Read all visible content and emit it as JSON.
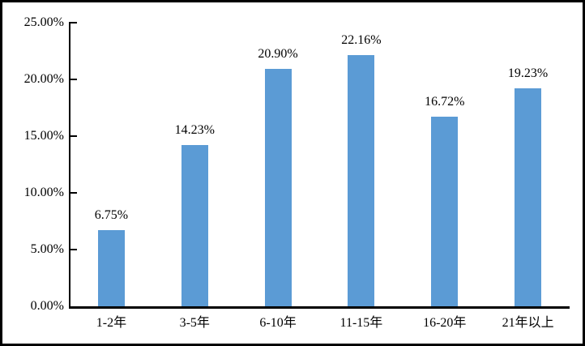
{
  "chart_data": {
    "type": "bar",
    "categories": [
      "1-2年",
      "3-5年",
      "6-10年",
      "11-15年",
      "16-20年",
      "21年以上"
    ],
    "values": [
      6.75,
      14.23,
      20.9,
      22.16,
      16.72,
      19.23
    ],
    "value_labels": [
      "6.75%",
      "14.23%",
      "20.90%",
      "22.16%",
      "16.72%",
      "19.23%"
    ],
    "title": "",
    "xlabel": "",
    "ylabel": "",
    "ylim": [
      0,
      25
    ],
    "ytick_values": [
      0,
      5,
      10,
      15,
      20,
      25
    ],
    "ytick_labels": [
      "0.00%",
      "5.00%",
      "10.00%",
      "15.00%",
      "20.00%",
      "25.00%"
    ],
    "grid": false,
    "legend": "none",
    "bar_color": "#5B9BD5",
    "axis_color": "#000000",
    "text_color": "#000000"
  }
}
